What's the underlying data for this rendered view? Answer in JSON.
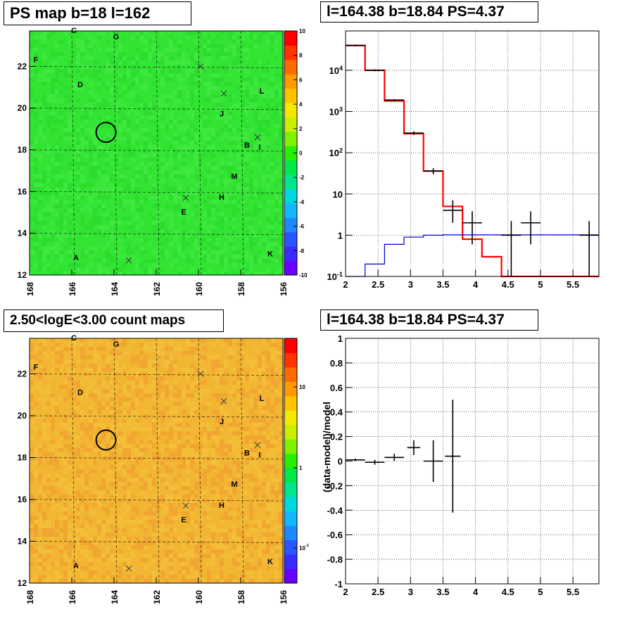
{
  "chart_data": [
    {
      "type": "heatmap",
      "title": "PS map b=18 l=162",
      "x_ticks": [
        "168",
        "166",
        "164",
        "162",
        "160",
        "158",
        "156"
      ],
      "x_range": [
        168,
        156
      ],
      "y_ticks": [
        "12",
        "14",
        "16",
        "18",
        "20",
        "22"
      ],
      "y_range": [
        12,
        23.7
      ],
      "colorbar": {
        "scale": "linear",
        "range": [
          -10,
          10
        ],
        "ticks": [
          "10",
          "8",
          "6",
          "4",
          "2",
          "0",
          "-2",
          "-4",
          "-6",
          "-8",
          "-10"
        ],
        "colors": [
          "#6a00ff",
          "#3a2bff",
          "#2a55ff",
          "#1e88ff",
          "#13b6ff",
          "#00d8e0",
          "#00e68a",
          "#00e84a",
          "#26f000",
          "#7ff200",
          "#c8f000",
          "#f5e800",
          "#ffc400",
          "#ff9a00",
          "#ff6a00",
          "#ff3300",
          "#ff0000"
        ]
      },
      "background_color": "#33e533",
      "circle": {
        "l": 164.38,
        "b": 18.84
      },
      "labels": [
        {
          "text": "C",
          "l": 165.9,
          "b": 23.6
        },
        {
          "text": "G",
          "l": 163.9,
          "b": 23.3
        },
        {
          "text": "F",
          "l": 167.7,
          "b": 22.2
        },
        {
          "text": "D",
          "l": 165.6,
          "b": 21.0
        },
        {
          "text": "L",
          "l": 157.0,
          "b": 20.7
        },
        {
          "text": "J",
          "l": 158.9,
          "b": 19.6
        },
        {
          "text": "B",
          "l": 157.7,
          "b": 18.1
        },
        {
          "text": "I",
          "l": 157.1,
          "b": 18.0
        },
        {
          "text": "M",
          "l": 158.3,
          "b": 16.6
        },
        {
          "text": "H",
          "l": 158.9,
          "b": 15.6
        },
        {
          "text": "E",
          "l": 160.7,
          "b": 14.9
        },
        {
          "text": "A",
          "l": 165.8,
          "b": 12.7
        },
        {
          "text": "K",
          "l": 156.6,
          "b": 12.9
        }
      ],
      "crosses": [
        {
          "l": 159.9,
          "b": 22.0
        },
        {
          "l": 158.8,
          "b": 20.7
        },
        {
          "l": 157.2,
          "b": 18.6
        },
        {
          "l": 160.6,
          "b": 15.7
        },
        {
          "l": 163.3,
          "b": 12.7
        }
      ]
    },
    {
      "type": "line",
      "title": "l=164.38 b=18.84 PS=4.37",
      "x_ticks": [
        "2",
        "2.5",
        "3",
        "3.5",
        "4",
        "4.5",
        "5",
        "5.5"
      ],
      "x_range": [
        2,
        5.9
      ],
      "y_scale": "log",
      "y_ticks": [
        "10^-1",
        "1",
        "10",
        "10^2",
        "10^3",
        "10^4"
      ],
      "y_range": [
        0.1,
        90000
      ],
      "series": [
        {
          "color": "#ff0000",
          "bins": [
            [
              2.0,
              2.3,
              40000
            ],
            [
              2.3,
              2.6,
              10000
            ],
            [
              2.6,
              2.9,
              1800
            ],
            [
              2.9,
              3.2,
              290
            ],
            [
              3.2,
              3.5,
              36
            ],
            [
              3.5,
              3.8,
              5
            ],
            [
              3.8,
              4.1,
              0.8
            ],
            [
              4.1,
              4.4,
              0.3
            ],
            [
              4.4,
              5.9,
              0.1
            ]
          ]
        },
        {
          "color": "#0000cc",
          "bins": [
            [
              2.0,
              2.3,
              0.1
            ],
            [
              2.3,
              2.6,
              0.2
            ],
            [
              2.6,
              2.9,
              0.6
            ],
            [
              2.9,
              3.2,
              0.9
            ],
            [
              3.2,
              3.5,
              1.0
            ],
            [
              3.5,
              5.9,
              1.02
            ]
          ]
        }
      ],
      "points": [
        {
          "x": 2.15,
          "y": 40000,
          "dx": 0.15,
          "lo": 38000,
          "hi": 42000
        },
        {
          "x": 2.45,
          "y": 10000,
          "dx": 0.15,
          "lo": 9500,
          "hi": 10500
        },
        {
          "x": 2.75,
          "y": 1900,
          "dx": 0.15,
          "lo": 1800,
          "hi": 2000
        },
        {
          "x": 3.05,
          "y": 300,
          "dx": 0.15,
          "lo": 270,
          "hi": 330
        },
        {
          "x": 3.35,
          "y": 36,
          "dx": 0.15,
          "lo": 30,
          "hi": 42
        },
        {
          "x": 3.65,
          "y": 4,
          "dx": 0.15,
          "lo": 2,
          "hi": 7
        },
        {
          "x": 3.95,
          "y": 2,
          "dx": 0.15,
          "lo": 0.6,
          "hi": 3.8
        },
        {
          "x": 4.55,
          "y": 1,
          "dx": 0.15,
          "lo": 0.1,
          "hi": 2.2
        },
        {
          "x": 4.85,
          "y": 2,
          "dx": 0.15,
          "lo": 0.6,
          "hi": 3.8
        },
        {
          "x": 5.75,
          "y": 1,
          "dx": 0.15,
          "lo": 0.1,
          "hi": 2.2
        }
      ],
      "grid": true
    },
    {
      "type": "heatmap",
      "title": "2.50<logE<3.00 count maps",
      "x_ticks": [
        "168",
        "166",
        "164",
        "162",
        "160",
        "158",
        "156"
      ],
      "x_range": [
        168,
        156
      ],
      "y_ticks": [
        "12",
        "14",
        "16",
        "18",
        "20",
        "22"
      ],
      "y_range": [
        12,
        23.7
      ],
      "colorbar": {
        "scale": "log",
        "ticks": [
          "10",
          "1",
          "10^-1"
        ],
        "colors": [
          "#6a00ff",
          "#3a2bff",
          "#2a55ff",
          "#1e88ff",
          "#13b6ff",
          "#00d8e0",
          "#00e68a",
          "#00e84a",
          "#26f000",
          "#7ff200",
          "#c8f000",
          "#f5e800",
          "#ffc400",
          "#ff9a00",
          "#ff6a00",
          "#ff3300",
          "#ff0000"
        ]
      },
      "background_color": "#f2b633",
      "circle": {
        "l": 164.38,
        "b": 18.84
      },
      "labels": [
        {
          "text": "C",
          "l": 165.9,
          "b": 23.6
        },
        {
          "text": "G",
          "l": 163.9,
          "b": 23.3
        },
        {
          "text": "F",
          "l": 167.7,
          "b": 22.2
        },
        {
          "text": "D",
          "l": 165.6,
          "b": 21.0
        },
        {
          "text": "L",
          "l": 157.0,
          "b": 20.7
        },
        {
          "text": "J",
          "l": 158.9,
          "b": 19.6
        },
        {
          "text": "B",
          "l": 157.7,
          "b": 18.1
        },
        {
          "text": "I",
          "l": 157.1,
          "b": 18.0
        },
        {
          "text": "M",
          "l": 158.3,
          "b": 16.6
        },
        {
          "text": "H",
          "l": 158.9,
          "b": 15.6
        },
        {
          "text": "E",
          "l": 160.7,
          "b": 14.9
        },
        {
          "text": "A",
          "l": 165.8,
          "b": 12.7
        },
        {
          "text": "K",
          "l": 156.6,
          "b": 12.9
        }
      ],
      "crosses": [
        {
          "l": 159.9,
          "b": 22.0
        },
        {
          "l": 158.8,
          "b": 20.7
        },
        {
          "l": 157.2,
          "b": 18.6
        },
        {
          "l": 160.6,
          "b": 15.7
        },
        {
          "l": 163.3,
          "b": 12.7
        }
      ]
    },
    {
      "type": "scatter",
      "title": "l=164.38 b=18.84 PS=4.37",
      "ylabel": "(data-model)/model",
      "x_ticks": [
        "2",
        "2.5",
        "3",
        "3.5",
        "4",
        "4.5",
        "5",
        "5.5"
      ],
      "x_range": [
        2,
        5.9
      ],
      "y_ticks": [
        "1",
        "0.8",
        "0.6",
        "0.4",
        "0.2",
        "0",
        "-0.2",
        "-0.4",
        "-0.6",
        "-0.8",
        "-1"
      ],
      "y_range": [
        -1,
        1
      ],
      "points": [
        {
          "x": 2.15,
          "y": 0.01,
          "dx": 0.15,
          "err": 0.01
        },
        {
          "x": 2.45,
          "y": -0.01,
          "dx": 0.15,
          "err": 0.02
        },
        {
          "x": 2.75,
          "y": 0.03,
          "dx": 0.15,
          "err": 0.03
        },
        {
          "x": 3.05,
          "y": 0.11,
          "dx": 0.1,
          "err": 0.06
        },
        {
          "x": 3.35,
          "y": 0.0,
          "dx": 0.15,
          "err": 0.17
        },
        {
          "x": 3.65,
          "y": 0.04,
          "dx": 0.12,
          "err": 0.46
        }
      ],
      "grid": true
    }
  ]
}
